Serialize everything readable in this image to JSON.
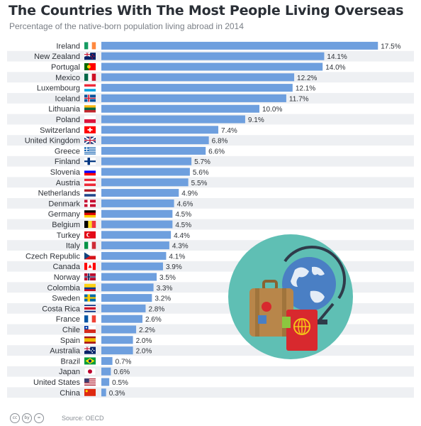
{
  "header": {
    "title": "The Countries With The Most People Living Overseas",
    "subtitle": "Percentage of the native-born population living abroad in 2014"
  },
  "footer": {
    "source": "Source: OECD",
    "license_icons": [
      "cc",
      "by",
      "="
    ]
  },
  "illustration": {
    "icons": [
      "globe-icon",
      "suitcase-icon",
      "passport-icon"
    ],
    "colors": {
      "circle": "#5fbfb4",
      "globe": "#4a7fc4",
      "suitcase": "#b8864a",
      "passport": "#d8292e"
    }
  },
  "colors": {
    "bar": "#6e9fde",
    "stripe": "#eef0f3"
  },
  "chart_data": {
    "type": "bar",
    "orientation": "horizontal",
    "unit": "%",
    "categories": [
      "Ireland",
      "New Zealand",
      "Portugal",
      "Mexico",
      "Luxembourg",
      "Iceland",
      "Lithuania",
      "Poland",
      "Switzerland",
      "United Kingdom",
      "Greece",
      "Finland",
      "Slovenia",
      "Austria",
      "Netherlands",
      "Denmark",
      "Germany",
      "Belgium",
      "Turkey",
      "Italy",
      "Czech Republic",
      "Canada",
      "Norway",
      "Colombia",
      "Sweden",
      "Costa Rica",
      "France",
      "Chile",
      "Spain",
      "Australia",
      "Brazil",
      "Japan",
      "United States",
      "China"
    ],
    "values": [
      17.5,
      14.1,
      14.0,
      12.2,
      12.1,
      11.7,
      10.0,
      9.1,
      7.4,
      6.8,
      6.6,
      5.7,
      5.6,
      5.5,
      4.9,
      4.6,
      4.5,
      4.5,
      4.4,
      4.3,
      4.1,
      3.9,
      3.5,
      3.3,
      3.2,
      2.8,
      2.6,
      2.2,
      2.0,
      2.0,
      0.7,
      0.6,
      0.5,
      0.3
    ],
    "labels": [
      "17.5%",
      "14.1%",
      "14.0%",
      "12.2%",
      "12.1%",
      "11.7%",
      "10.0%",
      "9.1%",
      "7.4%",
      "6.8%",
      "6.6%",
      "5.7%",
      "5.6%",
      "5.5%",
      "4.9%",
      "4.6%",
      "4.5%",
      "4.5%",
      "4.4%",
      "4.3%",
      "4.1%",
      "3.9%",
      "3.5%",
      "3.3%",
      "3.2%",
      "2.8%",
      "2.6%",
      "2.2%",
      "2.0%",
      "2.0%",
      "0.7%",
      "0.6%",
      "0.5%",
      "0.3%"
    ],
    "flags": [
      {
        "type": "v",
        "colors": [
          "#169b62",
          "#ffffff",
          "#ff883e"
        ]
      },
      {
        "type": "nz"
      },
      {
        "type": "pt"
      },
      {
        "type": "v",
        "colors": [
          "#006847",
          "#ffffff",
          "#ce1126"
        ]
      },
      {
        "type": "h",
        "colors": [
          "#ed2939",
          "#ffffff",
          "#00a1de"
        ]
      },
      {
        "type": "nordic",
        "colors": [
          "#02529c",
          "#ffffff",
          "#dc1e35"
        ]
      },
      {
        "type": "h",
        "colors": [
          "#fdb913",
          "#006a44",
          "#c1272d"
        ]
      },
      {
        "type": "h",
        "colors": [
          "#ffffff",
          "#dc143c"
        ]
      },
      {
        "type": "ch"
      },
      {
        "type": "uk"
      },
      {
        "type": "gr"
      },
      {
        "type": "nordic",
        "colors": [
          "#ffffff",
          "#003580",
          "#003580"
        ]
      },
      {
        "type": "h",
        "colors": [
          "#ffffff",
          "#0000ff",
          "#ff0000"
        ]
      },
      {
        "type": "h",
        "colors": [
          "#ed2939",
          "#ffffff",
          "#ed2939"
        ]
      },
      {
        "type": "h",
        "colors": [
          "#ae1c28",
          "#ffffff",
          "#21468b"
        ]
      },
      {
        "type": "nordic",
        "colors": [
          "#c60c30",
          "#ffffff",
          "#ffffff"
        ]
      },
      {
        "type": "h",
        "colors": [
          "#000000",
          "#dd0000",
          "#ffce00"
        ]
      },
      {
        "type": "v",
        "colors": [
          "#000000",
          "#fdda24",
          "#ef3340"
        ]
      },
      {
        "type": "tr"
      },
      {
        "type": "v",
        "colors": [
          "#009246",
          "#ffffff",
          "#ce2b37"
        ]
      },
      {
        "type": "cz"
      },
      {
        "type": "ca"
      },
      {
        "type": "nordic",
        "colors": [
          "#ba0c2f",
          "#ffffff",
          "#00205b"
        ]
      },
      {
        "type": "h",
        "colors": [
          "#fcd116",
          "#fcd116",
          "#003893",
          "#ce1126"
        ]
      },
      {
        "type": "nordic",
        "colors": [
          "#006aa7",
          "#fecc02",
          "#fecc02"
        ]
      },
      {
        "type": "h",
        "colors": [
          "#002b7f",
          "#ffffff",
          "#ce1126",
          "#ce1126",
          "#ffffff",
          "#002b7f"
        ]
      },
      {
        "type": "v",
        "colors": [
          "#0055a4",
          "#ffffff",
          "#ef4135"
        ]
      },
      {
        "type": "cl"
      },
      {
        "type": "h",
        "colors": [
          "#aa151b",
          "#f1bf00",
          "#f1bf00",
          "#aa151b"
        ]
      },
      {
        "type": "au"
      },
      {
        "type": "br"
      },
      {
        "type": "jp"
      },
      {
        "type": "us"
      },
      {
        "type": "cn"
      }
    ]
  }
}
